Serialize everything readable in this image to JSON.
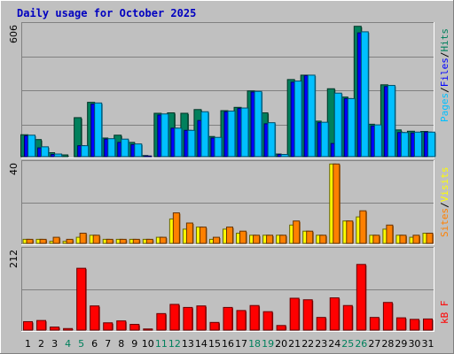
{
  "colors": {
    "background": "#C0C0C0",
    "panel": "#C0C0C0",
    "grid": "#808080",
    "title": "#0000C0",
    "hits": "#00805C",
    "files": "#0000FF",
    "pages": "#00C0FF",
    "visits": "#FFFF00",
    "sites": "#FF8000",
    "kbytes": "#FF0000",
    "weekend": "#00805C",
    "weekday": "#000000"
  },
  "chart_data": {
    "type": "bar",
    "title": "Daily usage for October 2025",
    "x": [
      "1",
      "2",
      "3",
      "4",
      "5",
      "6",
      "7",
      "8",
      "9",
      "10",
      "11",
      "12",
      "13",
      "14",
      "15",
      "16",
      "17",
      "18",
      "19",
      "20",
      "21",
      "22",
      "23",
      "24",
      "25",
      "26",
      "27",
      "28",
      "29",
      "30",
      "31"
    ],
    "weekend_days": [
      "4",
      "5",
      "11",
      "12",
      "18",
      "19",
      "25",
      "26"
    ],
    "panels": [
      {
        "name": "requests",
        "ymax_label": "606",
        "ylim": [
          0,
          606
        ],
        "series": [
          {
            "name": "Hits",
            "color": "#00805C",
            "values": [
              100,
              78,
              18,
              8,
              178,
              248,
              85,
              98,
              65,
              5,
              198,
              200,
              198,
              215,
              92,
              210,
              225,
              300,
              200,
              12,
              352,
              372,
              162,
              310,
              272,
              595,
              148,
              328,
              122,
              116,
              115
            ]
          },
          {
            "name": "Files",
            "color": "#0000FF",
            "values": [
              95,
              40,
              10,
              0,
              50,
              240,
              80,
              65,
              55,
              3,
              190,
              130,
              120,
              165,
              85,
              205,
              220,
              295,
              150,
              10,
              340,
              370,
              155,
              60,
              265,
              565,
              140,
              320,
              110,
              108,
              112
            ]
          },
          {
            "name": "Pages",
            "color": "#00C0FF",
            "values": [
              98,
              45,
              12,
              0,
              50,
              245,
              82,
              80,
              58,
              0,
              195,
              130,
              120,
              205,
              88,
              208,
              222,
              298,
              155,
              10,
              345,
              372,
              157,
              290,
              265,
              570,
              145,
              325,
              110,
              112,
              112
            ]
          }
        ]
      },
      {
        "name": "visitors",
        "ymax_label": "40",
        "ylim": [
          0,
          40
        ],
        "series": [
          {
            "name": "Visits",
            "color": "#FFFF00",
            "values": [
              2,
              2,
              1,
              1,
              3,
              4,
              2,
              2,
              2,
              2,
              3,
              12,
              7,
              8,
              2,
              7,
              5,
              4,
              4,
              4,
              9,
              6,
              4,
              39,
              11,
              13,
              4,
              7,
              4,
              3,
              5
            ]
          },
          {
            "name": "Sites",
            "color": "#FF8000",
            "values": [
              2,
              2,
              3,
              2,
              5,
              4,
              2,
              2,
              2,
              2,
              3,
              15,
              10,
              8,
              3,
              8,
              6,
              4,
              4,
              4,
              11,
              6,
              4,
              39,
              11,
              16,
              4,
              9,
              4,
              4,
              5
            ]
          }
        ]
      },
      {
        "name": "traffic",
        "ymax_label": "212",
        "ylim": [
          0,
          212
        ],
        "series": [
          {
            "name": "KB F",
            "color": "#FF0000",
            "values": [
              22,
              25,
              8,
              4,
              161,
              63,
              19,
              24,
              15,
              3,
              43,
              67,
              59,
              63,
              20,
              59,
              51,
              64,
              48,
              12,
              83,
              79,
              33,
              84,
              64,
              171,
              33,
              72,
              32,
              28,
              29
            ]
          }
        ]
      }
    ],
    "legend": {
      "top": [
        "Pages",
        "/",
        "Files",
        "/",
        "Hits"
      ],
      "middle": [
        "Sites",
        "/",
        "Visits"
      ],
      "bottom": [
        "kB F"
      ]
    },
    "grid": true
  }
}
